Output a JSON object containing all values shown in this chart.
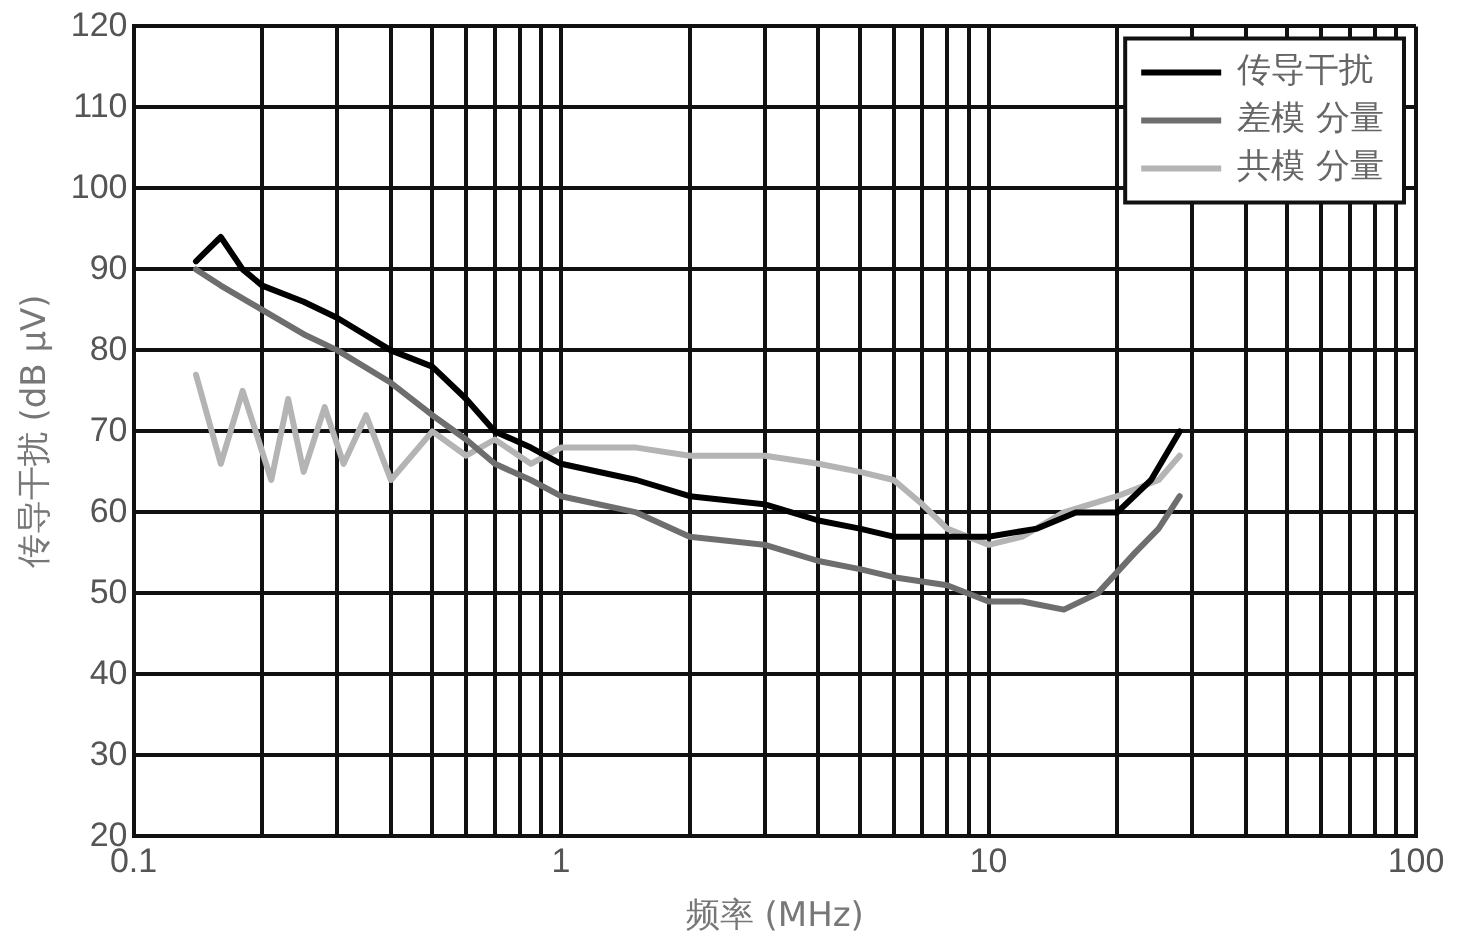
{
  "chart_data": {
    "type": "line",
    "xlabel": "频率 (MHz)",
    "ylabel": "传导干扰 (dB μV)",
    "xlim": [
      0.1,
      100
    ],
    "ylim": [
      20,
      120
    ],
    "xticks": [
      0.1,
      {
        "value": 0.2,
        "label": null
      },
      {
        "value": 0.3,
        "label": null
      },
      {
        "value": 0.4,
        "label": null
      },
      {
        "value": 0.5,
        "label": null
      },
      {
        "value": 0.6,
        "label": null
      },
      {
        "value": 0.7,
        "label": null
      },
      {
        "value": 0.8,
        "label": null
      },
      {
        "value": 0.9,
        "label": null
      },
      1,
      {
        "value": 2,
        "label": null
      },
      {
        "value": 3,
        "label": null
      },
      {
        "value": 4,
        "label": null
      },
      {
        "value": 5,
        "label": null
      },
      {
        "value": 6,
        "label": null
      },
      {
        "value": 7,
        "label": null
      },
      {
        "value": 8,
        "label": null
      },
      {
        "value": 9,
        "label": null
      },
      10,
      {
        "value": 20,
        "label": null
      },
      {
        "value": 30,
        "label": null
      },
      {
        "value": 40,
        "label": null
      },
      {
        "value": 50,
        "label": null
      },
      {
        "value": 60,
        "label": null
      },
      {
        "value": 70,
        "label": null
      },
      {
        "value": 80,
        "label": null
      },
      {
        "value": 90,
        "label": null
      },
      100
    ],
    "yticks": [
      20,
      30,
      40,
      50,
      60,
      70,
      80,
      90,
      100,
      110,
      120
    ],
    "log": "x",
    "grid": true,
    "legend": "top right",
    "marker": "none",
    "line_style": "solid",
    "series": [
      {
        "name": "传导干扰",
        "color": "#000000",
        "x": [
          0.14,
          0.16,
          0.18,
          0.2,
          0.25,
          0.3,
          0.4,
          0.5,
          0.6,
          0.7,
          0.85,
          1,
          1.5,
          2,
          3,
          4,
          5,
          6,
          8,
          10,
          13,
          16,
          20,
          24,
          28
        ],
        "values": [
          91,
          94,
          90,
          88,
          86,
          84,
          80,
          78,
          74,
          70,
          68,
          66,
          64,
          62,
          61,
          59,
          58,
          57,
          57,
          57,
          58,
          60,
          60,
          64,
          70
        ]
      },
      {
        "name": "差模 分量",
        "color": "#6e6e6e",
        "x": [
          0.14,
          0.16,
          0.2,
          0.25,
          0.3,
          0.4,
          0.5,
          0.6,
          0.7,
          0.85,
          1,
          1.5,
          2,
          3,
          4,
          5,
          6,
          8,
          10,
          12,
          15,
          18,
          22,
          25,
          28
        ],
        "values": [
          90,
          88,
          85,
          82,
          80,
          76,
          72,
          69,
          66,
          64,
          62,
          60,
          57,
          56,
          54,
          53,
          52,
          51,
          49,
          49,
          48,
          50,
          55,
          58,
          62
        ]
      },
      {
        "name": "共模 分量",
        "color": "#b4b4b4",
        "x": [
          0.14,
          0.16,
          0.18,
          0.21,
          0.23,
          0.25,
          0.28,
          0.31,
          0.35,
          0.4,
          0.5,
          0.6,
          0.7,
          0.85,
          1,
          1.5,
          2,
          3,
          4,
          5,
          6,
          7,
          8,
          10,
          12,
          15,
          20,
          25,
          28
        ],
        "values": [
          77,
          66,
          75,
          64,
          74,
          65,
          73,
          66,
          72,
          64,
          70,
          67,
          69,
          66,
          68,
          68,
          67,
          67,
          66,
          65,
          64,
          61,
          58,
          56,
          57,
          60,
          62,
          64,
          67
        ]
      }
    ]
  }
}
